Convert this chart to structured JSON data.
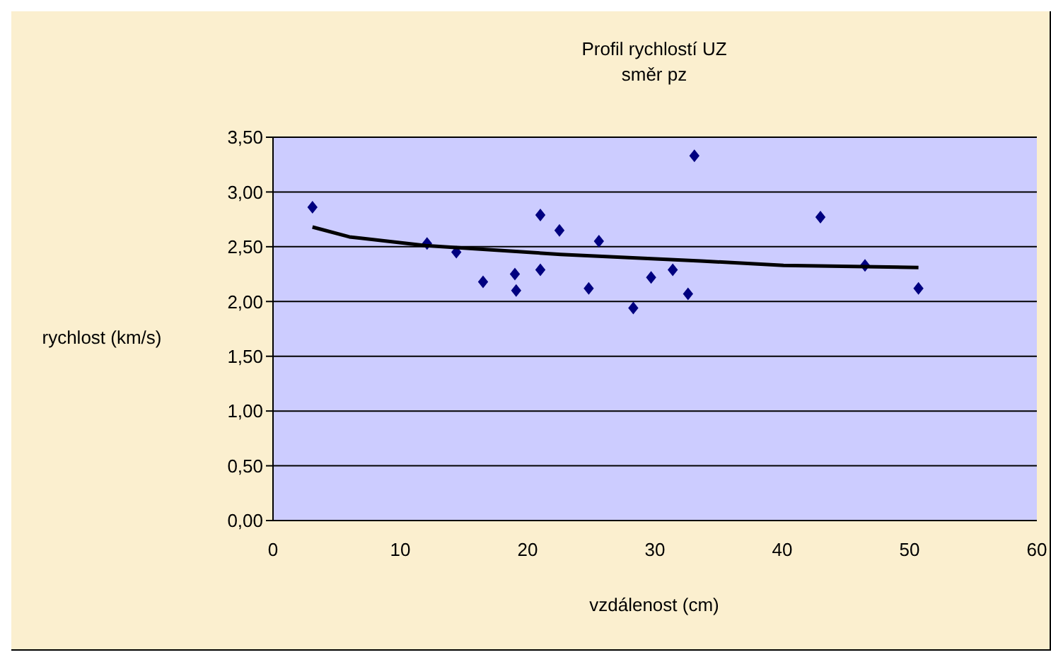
{
  "chart_data": {
    "type": "scatter",
    "title": "Profil rychlostí UZ",
    "subtitle": "směr pz",
    "xlabel": "vzdálenost (cm)",
    "ylabel": "rychlost (km/s)",
    "series": [
      {
        "color": "#000080",
        "marker": "diamond",
        "x": [
          3.1,
          12.1,
          14.4,
          16.5,
          19.0,
          19.1,
          21.0,
          21.0,
          22.5,
          24.8,
          25.6,
          28.3,
          29.7,
          31.4,
          32.6,
          33.1,
          43.0,
          46.5,
          50.7
        ],
        "values": [
          2.86,
          2.53,
          2.45,
          2.18,
          2.25,
          2.1,
          2.79,
          2.29,
          2.65,
          2.12,
          2.55,
          1.94,
          2.22,
          2.29,
          2.07,
          3.33,
          2.77,
          2.33,
          2.12
        ]
      },
      {
        "type": "line",
        "color": "#000000",
        "marker": "none",
        "line_style": "solid",
        "x": [
          3.1,
          6,
          12,
          22.6,
          33.6,
          40.1,
          50.7
        ],
        "values": [
          2.68,
          2.59,
          2.51,
          2.43,
          2.37,
          2.33,
          2.31
        ]
      }
    ],
    "xlim": [
      0,
      60
    ],
    "xticks": [
      0,
      10,
      20,
      30,
      40,
      50,
      60
    ],
    "ylim": [
      0,
      3.5
    ],
    "yticks": [
      {
        "value": 0,
        "label": "0,00"
      },
      {
        "value": 0.5,
        "label": "0,50"
      },
      {
        "value": 1,
        "label": "1,00"
      },
      {
        "value": 1.5,
        "label": "1,50"
      },
      {
        "value": 2,
        "label": "2,00"
      },
      {
        "value": 2.5,
        "label": "2,50"
      },
      {
        "value": 3,
        "label": "3,00"
      },
      {
        "value": 3.5,
        "label": "3,50"
      }
    ],
    "grid": "y"
  }
}
